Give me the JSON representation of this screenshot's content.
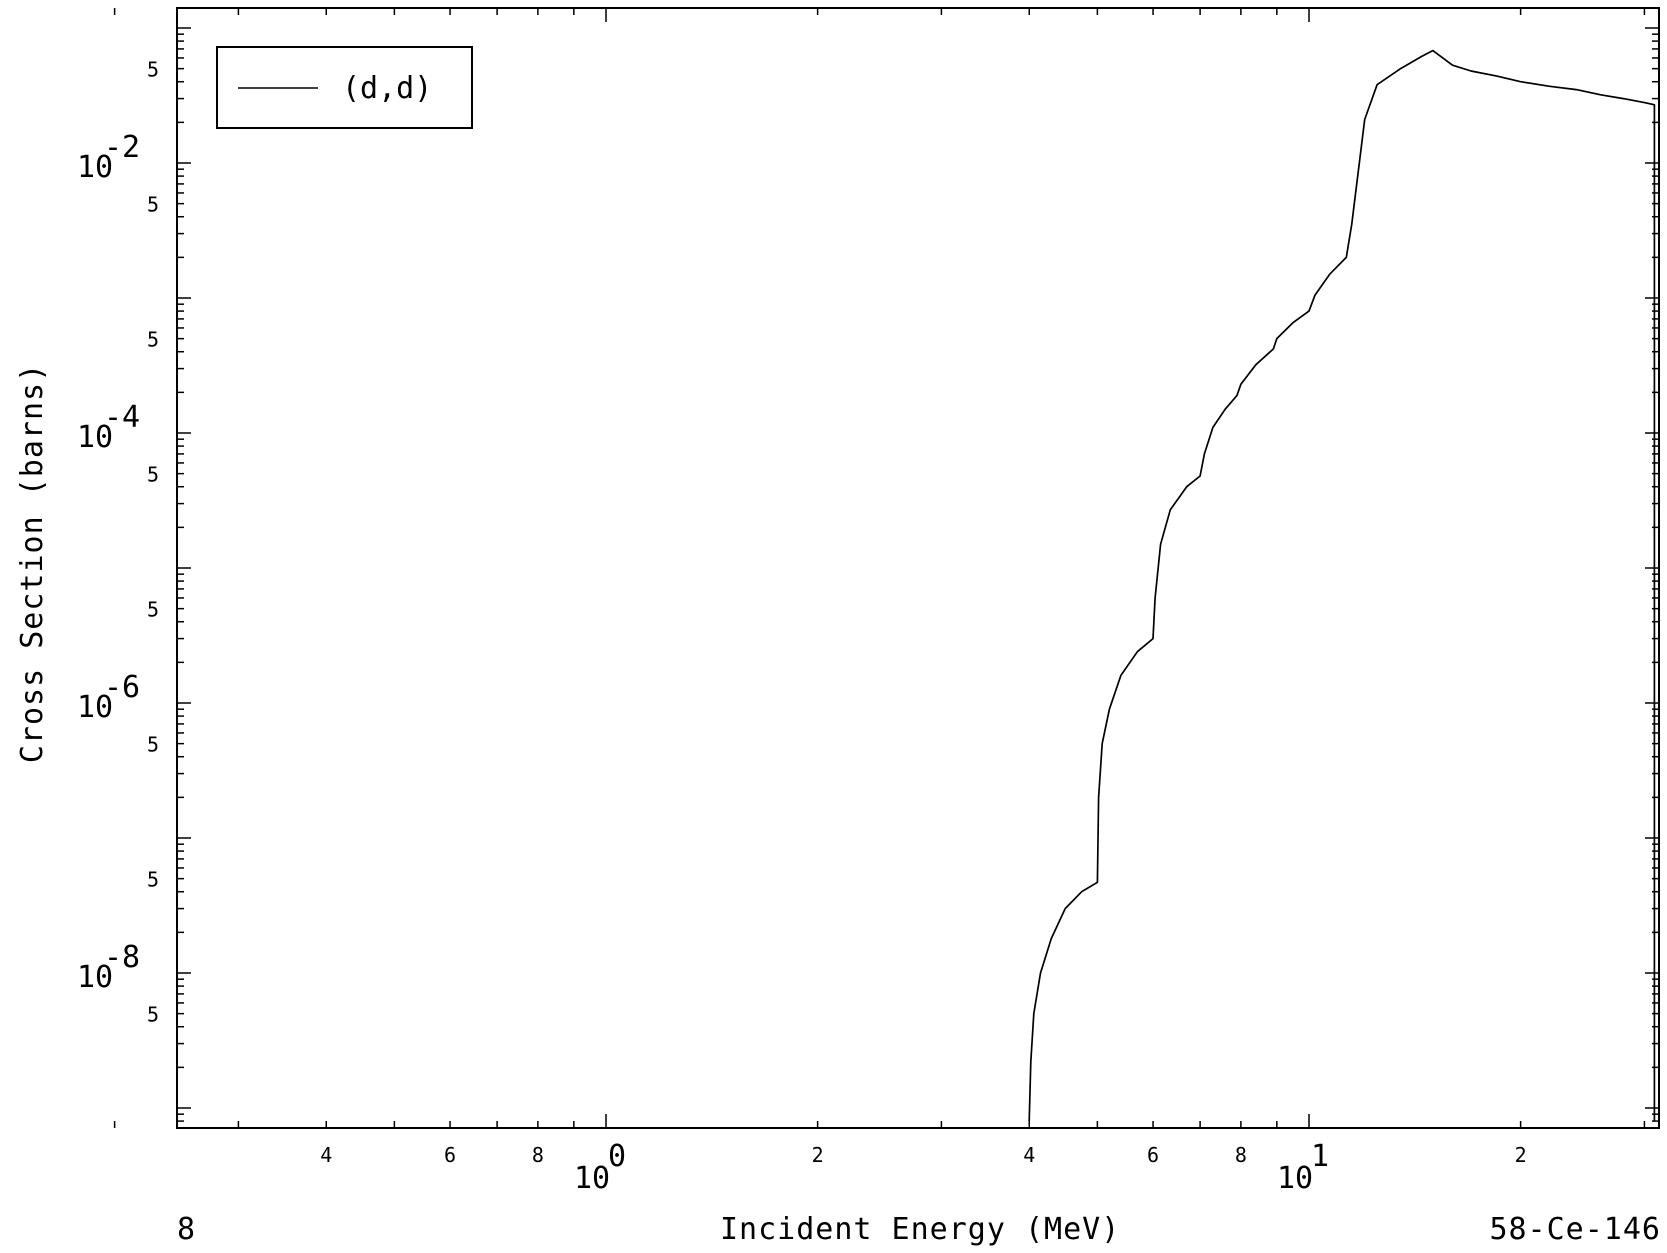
{
  "footer": {
    "left_label": "8",
    "center_label": "Incident Energy (MeV)",
    "right_label": "58-Ce-146"
  },
  "chart_data": {
    "type": "line",
    "title": "",
    "xlabel": "Incident Energy (MeV)",
    "ylabel": "Cross Section (barns)",
    "x_scale": "log",
    "y_scale": "log",
    "xlim": [
      0.2,
      32
    ],
    "ylim": [
      8e-10,
      0.13
    ],
    "grid": false,
    "legend_position": "top-left",
    "x_major_ticks": [
      {
        "value": 1,
        "base": "10",
        "exp": "0"
      },
      {
        "value": 10,
        "base": "10",
        "exp": "1"
      }
    ],
    "x_minor_labels": [
      {
        "value": 0.4,
        "label": "4"
      },
      {
        "value": 0.6,
        "label": "6"
      },
      {
        "value": 0.8,
        "label": "8"
      },
      {
        "value": 2,
        "label": "2"
      },
      {
        "value": 4,
        "label": "4"
      },
      {
        "value": 6,
        "label": "6"
      },
      {
        "value": 8,
        "label": "8"
      },
      {
        "value": 20,
        "label": "2"
      }
    ],
    "y_major_ticks": [
      {
        "value": 0.01,
        "base": "10",
        "exp": "-2"
      },
      {
        "value": 0.0001,
        "base": "10",
        "exp": "-4"
      },
      {
        "value": 1e-06,
        "base": "10",
        "exp": "-6"
      },
      {
        "value": 1e-08,
        "base": "10",
        "exp": "-8"
      }
    ],
    "y_minor_labels": [
      {
        "value": 0.05,
        "label": "5"
      },
      {
        "value": 0.005,
        "label": "5"
      },
      {
        "value": 0.0005,
        "label": "5"
      },
      {
        "value": 5e-05,
        "label": "5"
      },
      {
        "value": 5e-06,
        "label": "5"
      },
      {
        "value": 5e-07,
        "label": "5"
      },
      {
        "value": 5e-08,
        "label": "5"
      },
      {
        "value": 5e-09,
        "label": "5"
      }
    ],
    "series": [
      {
        "name": "(d,d)",
        "color": "#000000",
        "points": [
          [
            4.0,
            8e-10
          ],
          [
            4.02,
            2.2e-09
          ],
          [
            4.06,
            5e-09
          ],
          [
            4.15,
            1e-08
          ],
          [
            4.3,
            1.8e-08
          ],
          [
            4.5,
            3e-08
          ],
          [
            4.75,
            4e-08
          ],
          [
            5.0,
            4.7e-08
          ],
          [
            5.02,
            2e-07
          ],
          [
            5.08,
            5e-07
          ],
          [
            5.2,
            9e-07
          ],
          [
            5.4,
            1.6e-06
          ],
          [
            5.7,
            2.4e-06
          ],
          [
            6.0,
            3e-06
          ],
          [
            6.04,
            6e-06
          ],
          [
            6.15,
            1.5e-05
          ],
          [
            6.35,
            2.7e-05
          ],
          [
            6.7,
            4e-05
          ],
          [
            7.0,
            4.8e-05
          ],
          [
            7.1,
            7e-05
          ],
          [
            7.3,
            0.00011
          ],
          [
            7.6,
            0.00015
          ],
          [
            7.9,
            0.00019
          ],
          [
            8.0,
            0.00023
          ],
          [
            8.4,
            0.00032
          ],
          [
            8.9,
            0.00042
          ],
          [
            9.0,
            0.0005
          ],
          [
            9.5,
            0.00066
          ],
          [
            10.0,
            0.0008
          ],
          [
            10.2,
            0.00105
          ],
          [
            10.7,
            0.0015
          ],
          [
            11.3,
            0.002
          ],
          [
            11.5,
            0.0035
          ],
          [
            12.0,
            0.021
          ],
          [
            12.5,
            0.038
          ],
          [
            13.5,
            0.05
          ],
          [
            14.5,
            0.062
          ],
          [
            15.0,
            0.068
          ],
          [
            15.5,
            0.06
          ],
          [
            16.0,
            0.053
          ],
          [
            17.0,
            0.048
          ],
          [
            18.5,
            0.044
          ],
          [
            20.0,
            0.04
          ],
          [
            22.0,
            0.037
          ],
          [
            24.0,
            0.035
          ],
          [
            26.0,
            0.032
          ],
          [
            28.0,
            0.03
          ],
          [
            30.0,
            0.028
          ],
          [
            31.0,
            0.027
          ],
          [
            31.0,
            8e-10
          ]
        ]
      }
    ]
  }
}
